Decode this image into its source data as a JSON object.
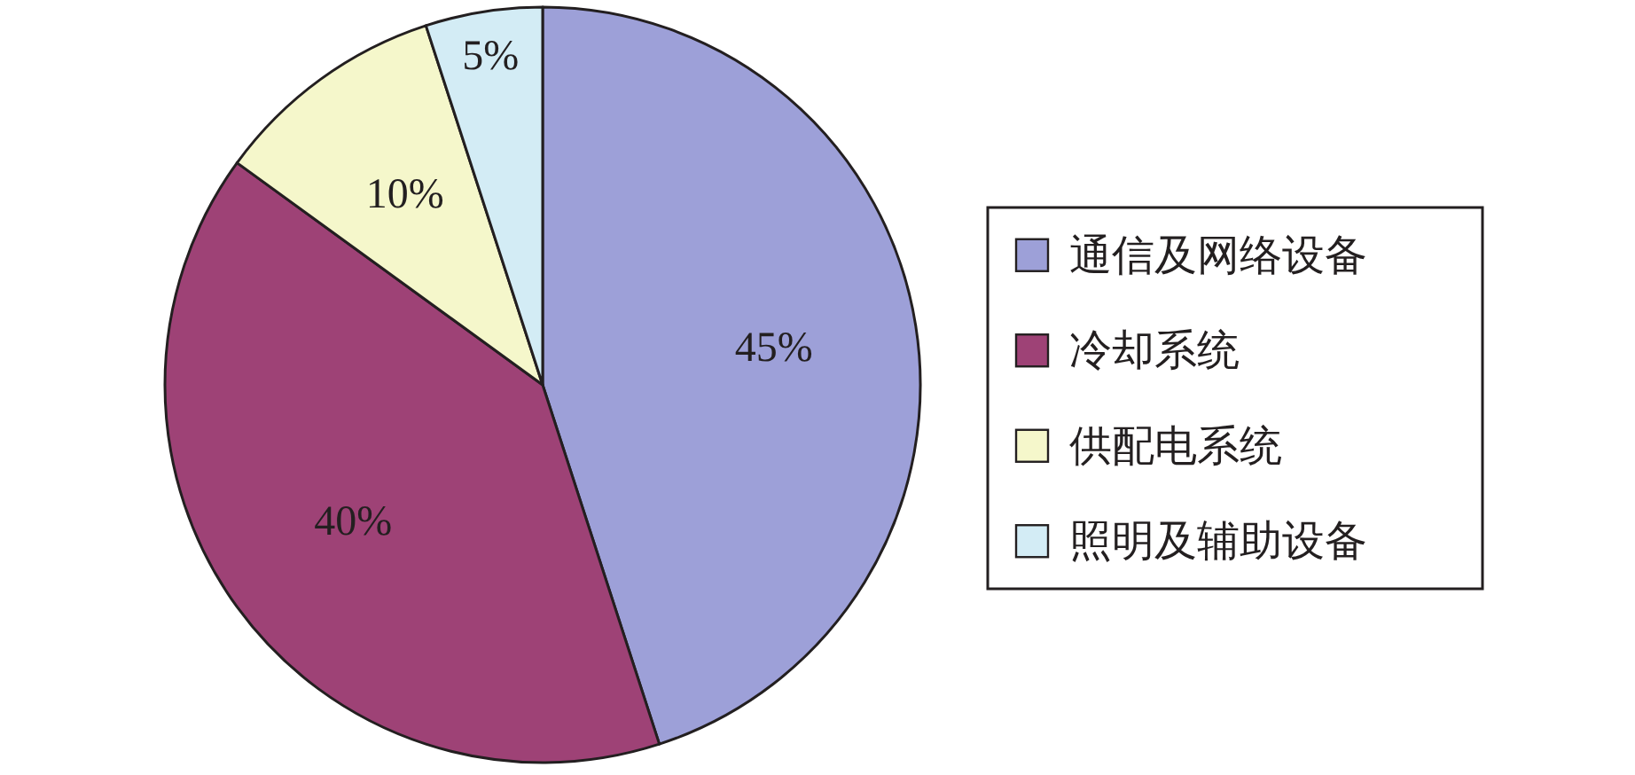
{
  "chart_data": {
    "type": "pie",
    "categories": [
      "通信及网络设备",
      "冷却系统",
      "供配电系统",
      "照明及辅助设备"
    ],
    "values": [
      45,
      40,
      10,
      5
    ],
    "value_labels": [
      "45%",
      "40%",
      "10%",
      "5%"
    ],
    "colors": [
      "#9da0d8",
      "#9e4276",
      "#f5f7cb",
      "#d3ecf5"
    ],
    "legend": "right"
  }
}
